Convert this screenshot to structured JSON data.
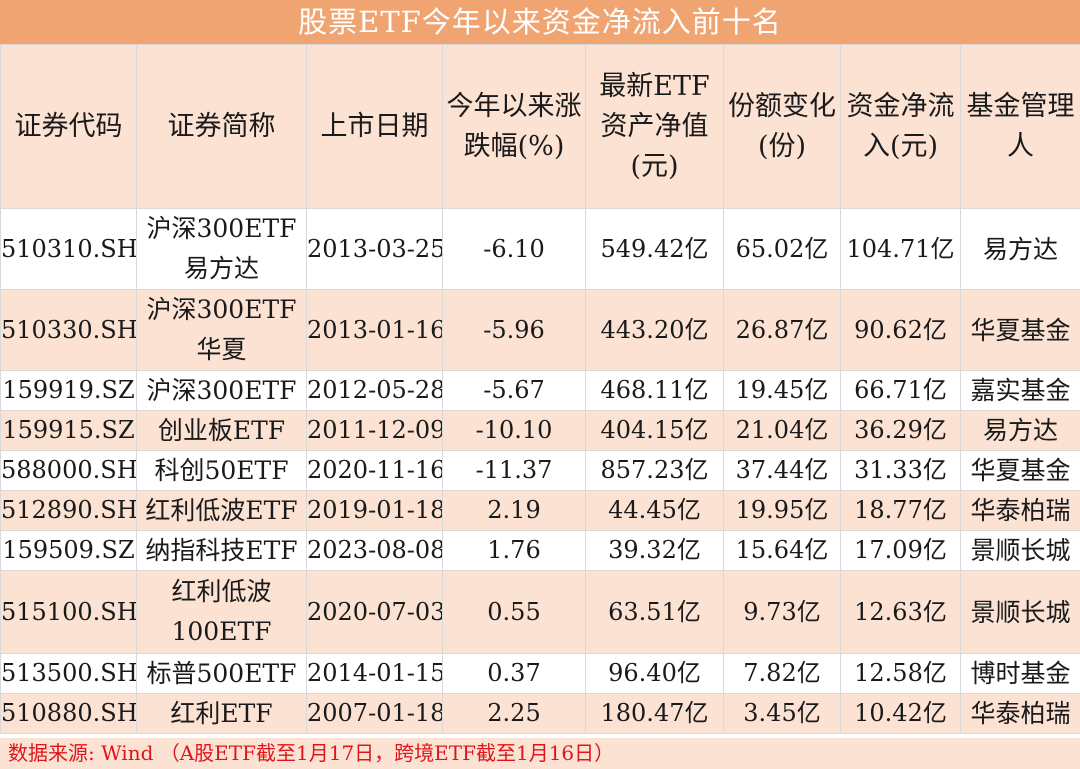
{
  "title": "股票ETF今年以来资金净流入前十名",
  "headers": {
    "code": "证券代码",
    "name": "证券简称",
    "date": "上市日期",
    "change": "今年以来涨跌幅(%)",
    "nav": "最新ETF资产净值(元)",
    "share": "份额变化(份)",
    "flow": "资金净流入(元)",
    "manager": "基金管理人"
  },
  "rows": [
    {
      "code": "510310.SH",
      "name": "沪深300ETF易方达",
      "date": "2013-03-25",
      "change": "-6.10",
      "nav": "549.42亿",
      "share": "65.02亿",
      "flow": "104.71亿",
      "manager": "易方达"
    },
    {
      "code": "510330.SH",
      "name": "沪深300ETF华夏",
      "date": "2013-01-16",
      "change": "-5.96",
      "nav": "443.20亿",
      "share": "26.87亿",
      "flow": "90.62亿",
      "manager": "华夏基金"
    },
    {
      "code": "159919.SZ",
      "name": "沪深300ETF",
      "date": "2012-05-28",
      "change": "-5.67",
      "nav": "468.11亿",
      "share": "19.45亿",
      "flow": "66.71亿",
      "manager": "嘉实基金"
    },
    {
      "code": "159915.SZ",
      "name": "创业板ETF",
      "date": "2011-12-09",
      "change": "-10.10",
      "nav": "404.15亿",
      "share": "21.04亿",
      "flow": "36.29亿",
      "manager": "易方达"
    },
    {
      "code": "588000.SH",
      "name": "科创50ETF",
      "date": "2020-11-16",
      "change": "-11.37",
      "nav": "857.23亿",
      "share": "37.44亿",
      "flow": "31.33亿",
      "manager": "华夏基金"
    },
    {
      "code": "512890.SH",
      "name": "红利低波ETF",
      "date": "2019-01-18",
      "change": "2.19",
      "nav": "44.45亿",
      "share": "19.95亿",
      "flow": "18.77亿",
      "manager": "华泰柏瑞"
    },
    {
      "code": "159509.SZ",
      "name": "纳指科技ETF",
      "date": "2023-08-08",
      "change": "1.76",
      "nav": "39.32亿",
      "share": "15.64亿",
      "flow": "17.09亿",
      "manager": "景顺长城"
    },
    {
      "code": "515100.SH",
      "name": "红利低波100ETF",
      "date": "2020-07-03",
      "change": "0.55",
      "nav": "63.51亿",
      "share": "9.73亿",
      "flow": "12.63亿",
      "manager": "景顺长城"
    },
    {
      "code": "513500.SH",
      "name": "标普500ETF",
      "date": "2014-01-15",
      "change": "0.37",
      "nav": "96.40亿",
      "share": "7.82亿",
      "flow": "12.58亿",
      "manager": "博时基金"
    },
    {
      "code": "510880.SH",
      "name": "红利ETF",
      "date": "2007-01-18",
      "change": "2.25",
      "nav": "180.47亿",
      "share": "3.45亿",
      "flow": "10.42亿",
      "manager": "华泰柏瑞"
    }
  ],
  "footer": "数据来源: Wind （A股ETF截至1月17日，跨境ETF截至1月16日）"
}
